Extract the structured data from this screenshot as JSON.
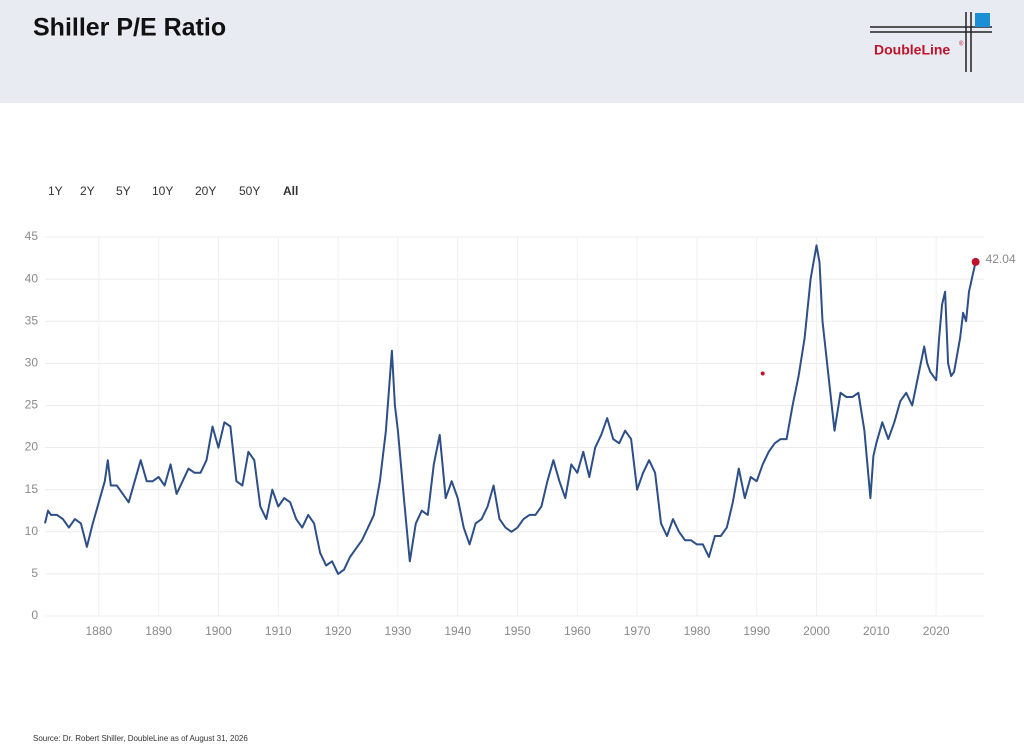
{
  "chart_data": {
    "type": "line",
    "title": "Shiller P/E Ratio",
    "logo": "DoubleLine",
    "logo_mark": "®",
    "range_buttons": [
      "1Y",
      "2Y",
      "5Y",
      "10Y",
      "20Y",
      "50Y",
      "All"
    ],
    "active_range": 6,
    "source": "Source: Dr. Robert Shiller, DoubleLine as of August 31, 2026",
    "xlim": [
      1871,
      2028
    ],
    "ylim": [
      0,
      45
    ],
    "xticks": [
      1880,
      1890,
      1900,
      1910,
      1920,
      1930,
      1940,
      1950,
      1960,
      1970,
      1980,
      1990,
      2000,
      2010,
      2020
    ],
    "yticks": [
      0,
      5,
      10,
      15,
      20,
      25,
      30,
      35,
      40,
      45
    ],
    "grid": true,
    "series": [
      {
        "name": "Shiller P/E Ratio",
        "color": "#2d4f88",
        "last_point_color": "#c0122a",
        "x": [
          1871,
          1871.5,
          1872,
          1873,
          1874,
          1875,
          1876,
          1877,
          1878,
          1879,
          1880,
          1881,
          1881.5,
          1882,
          1883,
          1884,
          1885,
          1886,
          1887,
          1888,
          1889,
          1890,
          1891,
          1892,
          1893,
          1894,
          1895,
          1896,
          1897,
          1898,
          1899,
          1900,
          1901,
          1902,
          1903,
          1904,
          1905,
          1906,
          1907,
          1908,
          1909,
          1910,
          1911,
          1912,
          1913,
          1914,
          1915,
          1916,
          1917,
          1918,
          1919,
          1920,
          1921,
          1922,
          1923,
          1924,
          1925,
          1926,
          1927,
          1928,
          1929,
          1929.5,
          1930,
          1931,
          1932,
          1933,
          1934,
          1935,
          1936,
          1937,
          1938,
          1939,
          1940,
          1941,
          1942,
          1943,
          1944,
          1945,
          1946,
          1947,
          1948,
          1949,
          1950,
          1951,
          1952,
          1953,
          1954,
          1955,
          1956,
          1957,
          1958,
          1959,
          1960,
          1961,
          1962,
          1963,
          1964,
          1965,
          1966,
          1967,
          1968,
          1969,
          1970,
          1971,
          1972,
          1973,
          1974,
          1975,
          1976,
          1977,
          1978,
          1979,
          1980,
          1981,
          1982,
          1983,
          1984,
          1985,
          1986,
          1987,
          1988,
          1989,
          1990,
          1991,
          1992,
          1993,
          1994,
          1995,
          1996,
          1997,
          1998,
          1999,
          2000,
          2000.5,
          2001,
          2002,
          2003,
          2004,
          2005,
          2006,
          2007,
          2008,
          2009,
          2009.5,
          2010,
          2011,
          2012,
          2013,
          2014,
          2015,
          2016,
          2017,
          2018,
          2018.5,
          2019,
          2020,
          2020.5,
          2021,
          2021.5,
          2022,
          2022.5,
          2023,
          2024,
          2024.5,
          2025,
          2025.5,
          2026.6
        ],
        "values": [
          11,
          12.5,
          12,
          12,
          11.5,
          10.5,
          11.5,
          11,
          8.2,
          11,
          13.5,
          16,
          18.5,
          15.5,
          15.5,
          14.5,
          13.5,
          16,
          18.5,
          16,
          16,
          16.5,
          15.5,
          18,
          14.5,
          16,
          17.5,
          17,
          17,
          18.5,
          22.5,
          20,
          23,
          22.5,
          16,
          15.5,
          19.5,
          18.5,
          13,
          11.5,
          15,
          13,
          14,
          13.5,
          11.5,
          10.5,
          12,
          11,
          7.5,
          6,
          6.5,
          5,
          5.5,
          7,
          8,
          9,
          10.5,
          12,
          16,
          22,
          31.5,
          25,
          22,
          14,
          6.5,
          11,
          12.5,
          12,
          18,
          21.5,
          14,
          16,
          14,
          10.5,
          8.5,
          11,
          11.5,
          13,
          15.5,
          11.5,
          10.5,
          10,
          10.5,
          11.5,
          12,
          12,
          13,
          16,
          18.5,
          16,
          14,
          18,
          17,
          19.5,
          16.5,
          20,
          21.5,
          23.5,
          21,
          20.5,
          22,
          21,
          15,
          17,
          18.5,
          17,
          11,
          9.5,
          11.5,
          10,
          9,
          9,
          8.5,
          8.5,
          7,
          9.5,
          9.5,
          10.5,
          13.5,
          17.5,
          14,
          16.5,
          16,
          18,
          19.5,
          20.5,
          21,
          21,
          25,
          28.5,
          33,
          40,
          44,
          42,
          35,
          28.5,
          22,
          26.5,
          26,
          26,
          26.5,
          22,
          14,
          19,
          20.5,
          23,
          21,
          23,
          25.5,
          26.5,
          25,
          28.5,
          32,
          30,
          29,
          28,
          33,
          37,
          38.5,
          30,
          28.5,
          29,
          33,
          36,
          35,
          38.5,
          42.04
        ]
      }
    ],
    "extra_point": {
      "x": 1991,
      "y": 28.8,
      "color": "#c0122a"
    }
  }
}
